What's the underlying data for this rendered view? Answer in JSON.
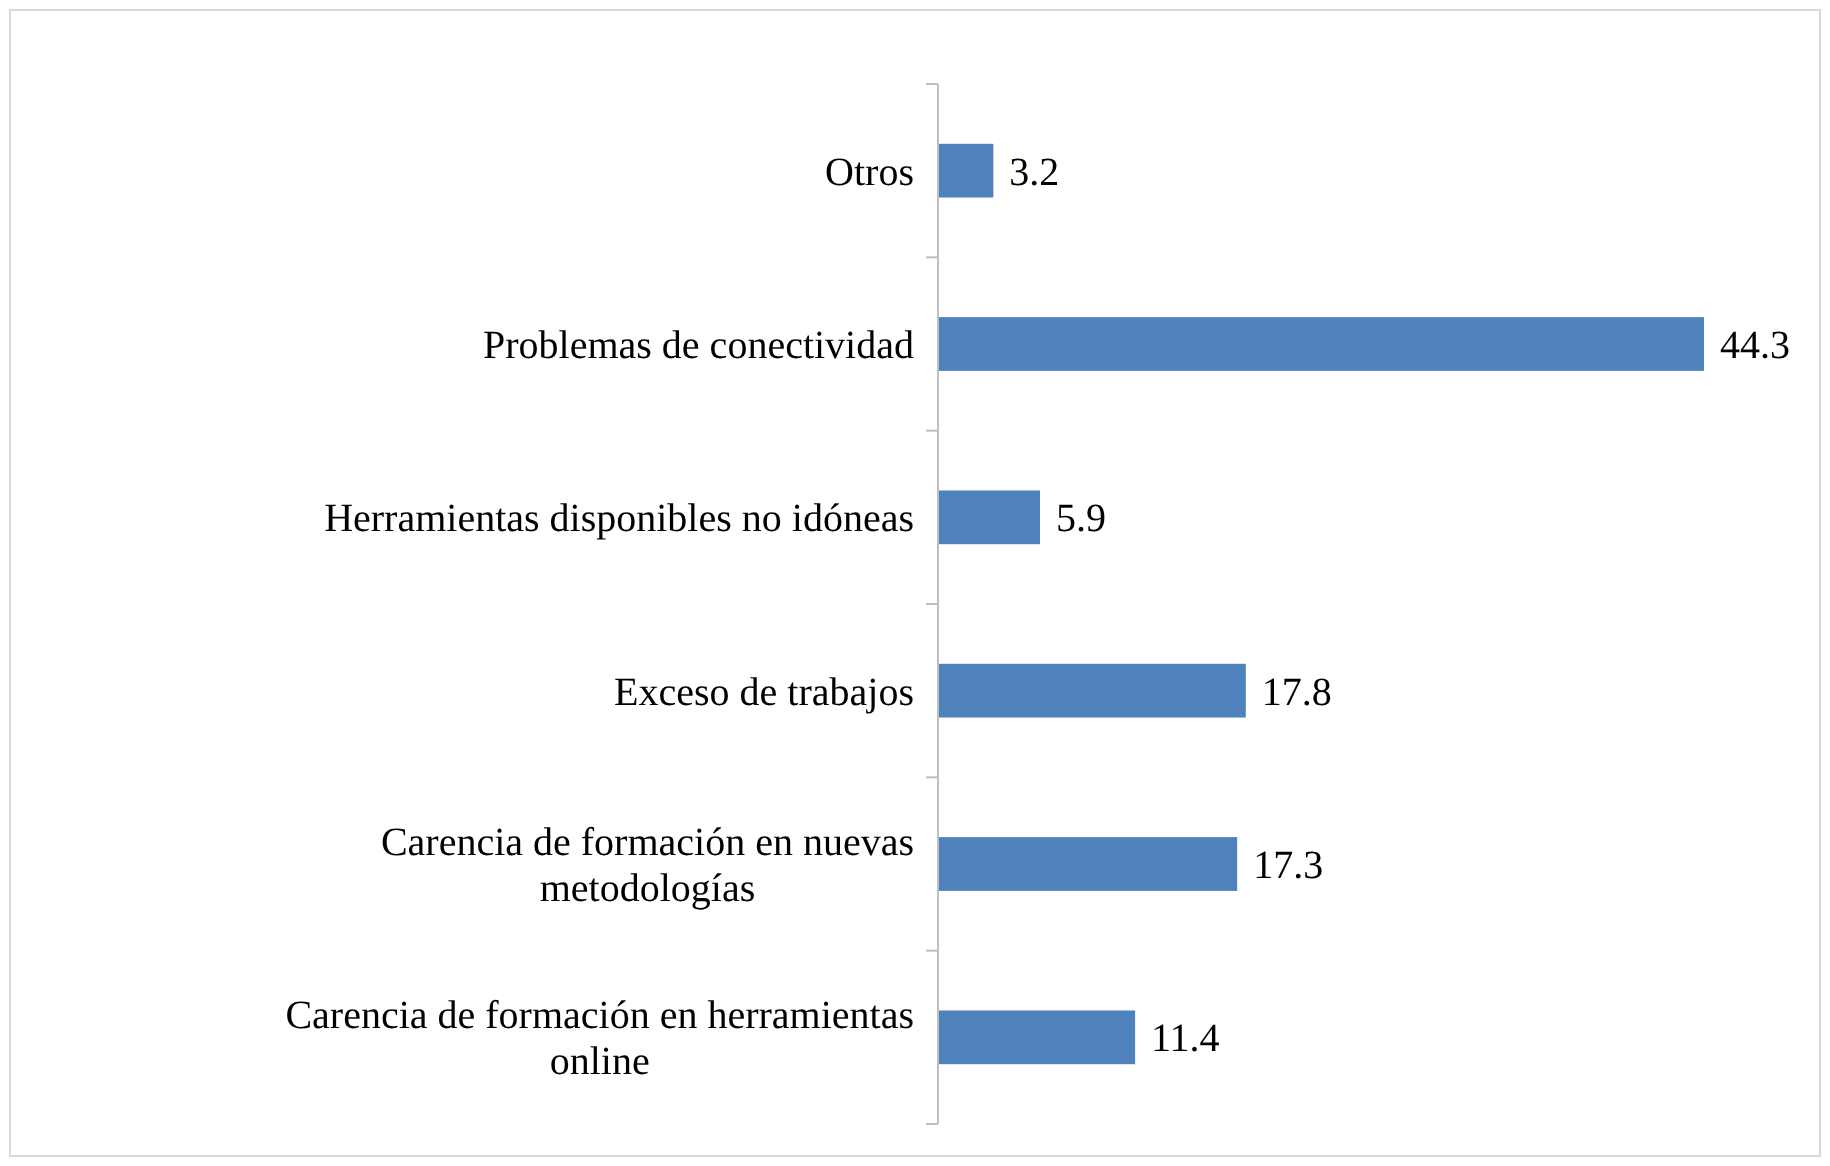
{
  "chart_data": {
    "type": "bar",
    "orientation": "horizontal",
    "categories": [
      "Otros",
      "Problemas de conectividad",
      "Herramientas disponibles no idóneas",
      "Exceso de trabajos",
      "Carencia de formación en nuevas metodologías",
      "Carencia de formación en herramientas online"
    ],
    "values": [
      3.2,
      44.3,
      5.9,
      17.8,
      17.3,
      11.4
    ],
    "color": "#4f81bd",
    "data_labels": true
  }
}
